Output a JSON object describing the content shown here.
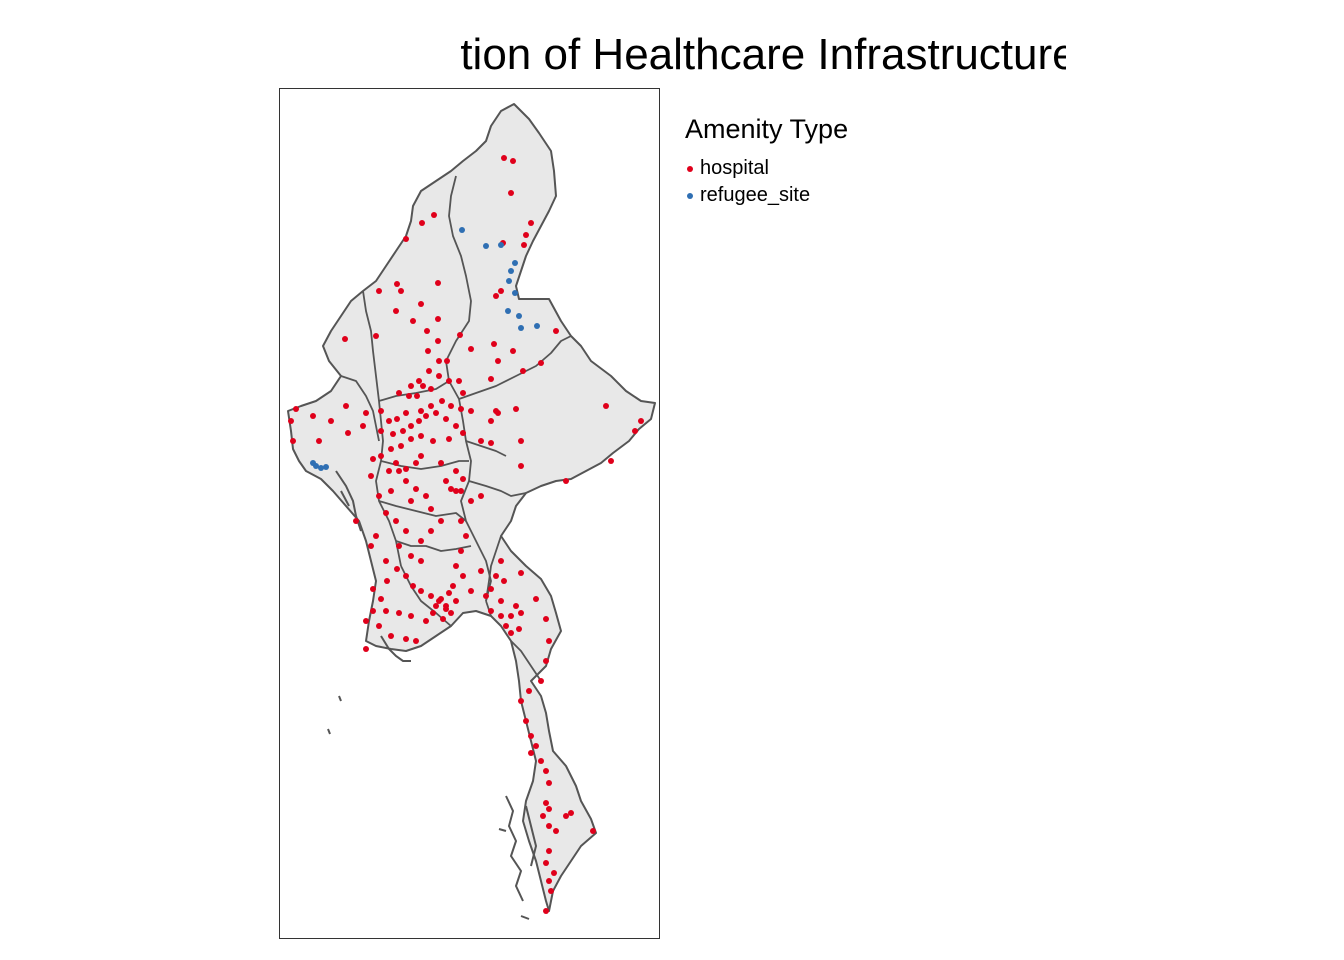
{
  "title": "tion of Healthcare Infrastructure & Am",
  "legend": {
    "title": "Amenity Type",
    "items": [
      {
        "label": "hospital",
        "color": "#e0001b"
      },
      {
        "label": "refugee_site",
        "color": "#2f6fb3"
      }
    ]
  },
  "map": {
    "region_fill": "#e8e8e8",
    "border_color": "#555555"
  }
}
